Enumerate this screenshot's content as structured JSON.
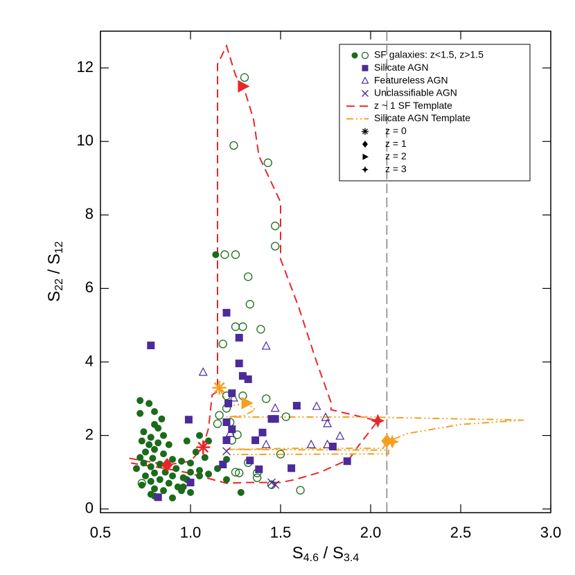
{
  "chart_data": {
    "type": "scatter",
    "xlabel": [
      "S",
      "4.6",
      " / S",
      "3.4"
    ],
    "ylabel": [
      "S",
      "22",
      " / S",
      "12"
    ],
    "xlim": [
      0.5,
      3.0
    ],
    "ylim": [
      -0.1,
      13.0
    ],
    "xticks": [
      0.5,
      {
        "value": 1,
        "label": "1.0"
      },
      1.5,
      {
        "value": 2,
        "label": "2.0"
      },
      2.5,
      {
        "value": 3,
        "label": "3.0"
      }
    ],
    "yticks": [
      0,
      2,
      4,
      6,
      8,
      10,
      12
    ],
    "vline": 2.09,
    "vline_color": "#808080",
    "series": [
      {
        "name": "SF galaxies: z<1.5, z>1.5",
        "marker": "circle-filled",
        "color": "#1a6b1a",
        "x": [
          0.72,
          0.77,
          0.8,
          0.72,
          0.84,
          0.8,
          0.82,
          0.74,
          0.85,
          0.78,
          0.73,
          0.82,
          0.77,
          0.88,
          0.8,
          0.75,
          0.85,
          0.72,
          0.79,
          0.9,
          0.95,
          0.74,
          0.83,
          0.78,
          0.92,
          0.7,
          0.86,
          0.8,
          0.75,
          0.9,
          0.96,
          0.83,
          0.78,
          0.88,
          0.73,
          0.93,
          0.8,
          0.85,
          0.95,
          0.78,
          0.9,
          0.8,
          0.98,
          1.05,
          1.1,
          1.03,
          1.08,
          1.0,
          1.05,
          1.0,
          0.98,
          1.1,
          1.05,
          1.2,
          1.15,
          1.2,
          1.28,
          1.14,
          0.96,
          1.0
        ],
        "y": [
          2.95,
          2.87,
          2.65,
          2.6,
          2.45,
          2.3,
          2.2,
          2.1,
          2.0,
          1.95,
          1.85,
          1.8,
          1.75,
          1.75,
          1.62,
          1.55,
          1.5,
          1.4,
          1.38,
          1.35,
          1.3,
          1.25,
          1.22,
          1.15,
          1.1,
          1.1,
          1.0,
          0.98,
          0.9,
          0.9,
          0.85,
          0.8,
          0.75,
          0.7,
          0.65,
          0.6,
          0.55,
          0.5,
          0.5,
          0.4,
          0.3,
          0.35,
          1.85,
          2.0,
          1.85,
          1.55,
          1.4,
          1.25,
          1.05,
          1.0,
          0.8,
          0.95,
          0.9,
          0.8,
          1.1,
          1.35,
          0.45,
          6.92,
          0.6,
          0.45
        ]
      },
      {
        "marker": "circle-open",
        "color": "#1a6b1a",
        "x": [
          1.3,
          1.24,
          1.43,
          1.47,
          1.47,
          1.19,
          1.25,
          1.32,
          1.33,
          1.39,
          1.25,
          1.29,
          1.18,
          1.42,
          1.29,
          1.2,
          1.16,
          1.2,
          1.22,
          1.26,
          1.23,
          1.53,
          1.5,
          1.32,
          1.37,
          1.37,
          1.27,
          1.25,
          1.45,
          1.61,
          0.73,
          1.15
        ],
        "y": [
          11.74,
          9.89,
          9.42,
          7.7,
          7.15,
          6.92,
          6.92,
          6.32,
          5.57,
          4.89,
          4.96,
          4.96,
          4.49,
          3.0,
          3.08,
          3.08,
          2.55,
          2.74,
          2.36,
          2.02,
          1.87,
          2.51,
          1.49,
          1.26,
          0.98,
          0.85,
          0.98,
          1.0,
          0.66,
          0.51,
          0.7,
          2.32
        ]
      },
      {
        "name": "Silicate AGN",
        "marker": "square",
        "color": "#4b2a9a",
        "x": [
          0.78,
          0.99,
          1.2,
          1.27,
          1.27,
          1.29,
          1.32,
          1.23,
          1.21,
          1.2,
          1.23,
          1.2,
          1.45,
          1.47,
          1.59,
          1.36,
          1.4,
          1.33,
          1.38,
          1.56,
          1.79,
          1.87,
          0.82,
          1.0,
          1.18
        ],
        "y": [
          4.45,
          2.43,
          5.34,
          4.66,
          3.96,
          3.62,
          3.53,
          3.15,
          2.87,
          2.36,
          2.17,
          1.87,
          2.45,
          2.45,
          2.81,
          1.87,
          2.08,
          1.32,
          1.08,
          1.11,
          1.7,
          1.3,
          0.32,
          0.72,
          1.21
        ]
      },
      {
        "name": "Featureless AGN",
        "marker": "triangle-open",
        "color": "#4b2a9a",
        "x": [
          1.07,
          1.42,
          1.47,
          1.7,
          1.24,
          1.22,
          1.75,
          1.76,
          1.83,
          1.67,
          1.76,
          1.42
        ],
        "y": [
          3.72,
          4.43,
          2.74,
          2.79,
          3.02,
          2.06,
          2.49,
          2.32,
          1.98,
          1.75,
          1.75,
          1.75
        ]
      },
      {
        "name": "Unclassifiable AGN",
        "marker": "x",
        "color": "#4b2a9a",
        "x": [
          1.2,
          1.45,
          1.47
        ],
        "y": [
          1.57,
          0.72,
          0.66
        ]
      }
    ],
    "templates": [
      {
        "name": "z ~ 1 SF Template",
        "color": "#e8262a",
        "linestyle": "dashed",
        "x": [
          0.66,
          0.87,
          1.0,
          1.07,
          1.1,
          1.12,
          1.15,
          1.15,
          1.2,
          1.25,
          1.3,
          1.35,
          1.38,
          1.5,
          1.5,
          1.6,
          1.7,
          1.78,
          1.78,
          2.04,
          1.93,
          1.88,
          1.72,
          1.58,
          1.5,
          1.3,
          1.2,
          0.97,
          0.86,
          0.67
        ],
        "y": [
          1.38,
          1.2,
          1.3,
          1.68,
          2.2,
          3.1,
          3.2,
          12.1,
          12.6,
          11.8,
          11.4,
          10.6,
          9.6,
          8.35,
          6.8,
          5.5,
          4.0,
          2.9,
          2.7,
          2.4,
          1.7,
          1.35,
          1.0,
          0.8,
          0.72,
          0.72,
          0.7,
          1.0,
          1.1,
          1.25
        ],
        "markers": {
          "x": [
            1.07,
            0.87,
            1.29,
            2.04
          ],
          "y": [
            1.68,
            1.2,
            11.5,
            2.4
          ]
        }
      },
      {
        "name": "Silicate AGN Template",
        "color": "#f5a020",
        "linestyle": "dashdotdot",
        "x": [
          1.16,
          1.19,
          1.2,
          1.31,
          1.36,
          1.3,
          1.2,
          2.0,
          2.5,
          2.85,
          2.5,
          2.2,
          2.13,
          2.12,
          2.09,
          2.07,
          1.6,
          1.2,
          2.1,
          2.1,
          1.22
        ],
        "y": [
          3.3,
          3.0,
          2.78,
          2.88,
          2.7,
          2.55,
          2.5,
          2.5,
          2.45,
          2.42,
          2.3,
          2.05,
          1.9,
          1.83,
          1.85,
          1.65,
          1.65,
          1.62,
          1.6,
          1.5,
          1.48
        ],
        "markers": {
          "x": [
            1.16,
            2.09,
            1.31,
            2.12
          ],
          "y": [
            3.3,
            1.85,
            2.88,
            1.83
          ]
        }
      }
    ],
    "redshift_markers": [
      {
        "label": "z = 0",
        "marker": "asterisk"
      },
      {
        "label": "z = 1",
        "marker": "diamond"
      },
      {
        "label": "z = 2",
        "marker": "triangle-right"
      },
      {
        "label": "z = 3",
        "marker": "star4"
      }
    ]
  }
}
